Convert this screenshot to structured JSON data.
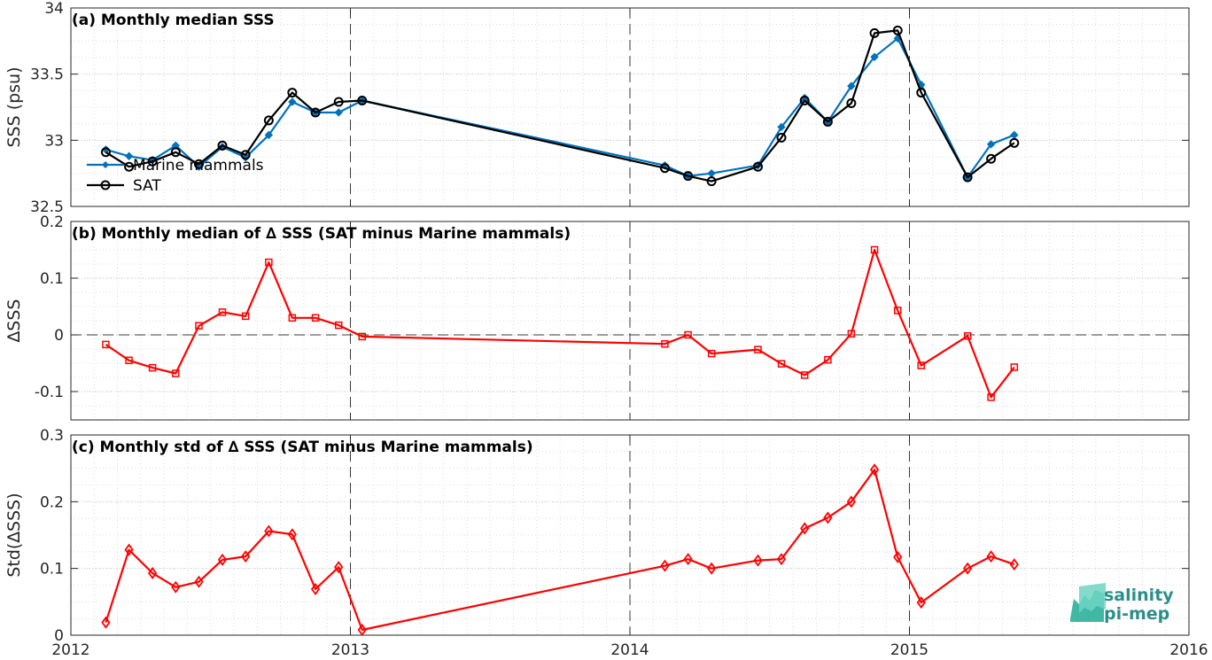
{
  "chart_data": [
    {
      "type": "line",
      "title": "(a) Monthly median SSS",
      "ylabel": "SSS (psu)",
      "xlim": [
        2012,
        2016
      ],
      "ylim": [
        32.5,
        34
      ],
      "yticks": [
        "32.5",
        "33",
        "33.5",
        "34"
      ],
      "grid": true,
      "legend_position": "lower-left",
      "series": [
        {
          "name": "Marine mammals",
          "color": "#0072bd",
          "marker": "diamond",
          "x": [
            2012.125,
            2012.208,
            2012.292,
            2012.375,
            2012.458,
            2012.542,
            2012.625,
            2012.708,
            2012.792,
            2012.875,
            2012.958,
            2013.042,
            2014.125,
            2014.208,
            2014.292,
            2014.458,
            2014.542,
            2014.625,
            2014.708,
            2014.792,
            2014.875,
            2014.958,
            2015.042,
            2015.208,
            2015.292,
            2015.375
          ],
          "values": [
            32.93,
            32.88,
            32.85,
            32.96,
            32.8,
            32.95,
            32.87,
            33.04,
            33.29,
            33.21,
            33.21,
            33.3,
            32.81,
            32.73,
            32.75,
            32.81,
            33.1,
            33.32,
            33.14,
            33.41,
            33.63,
            33.77,
            33.42,
            32.72,
            32.97,
            33.04
          ]
        },
        {
          "name": "SAT",
          "color": "#000000",
          "marker": "circle",
          "x": [
            2012.125,
            2012.208,
            2012.292,
            2012.375,
            2012.458,
            2012.542,
            2012.625,
            2012.708,
            2012.792,
            2012.875,
            2012.958,
            2013.042,
            2014.125,
            2014.208,
            2014.292,
            2014.458,
            2014.542,
            2014.625,
            2014.708,
            2014.792,
            2014.875,
            2014.958,
            2015.042,
            2015.208,
            2015.292,
            2015.375
          ],
          "values": [
            32.91,
            32.8,
            32.84,
            32.91,
            32.82,
            32.96,
            32.89,
            33.15,
            33.36,
            33.21,
            33.29,
            33.3,
            32.79,
            32.73,
            32.69,
            32.8,
            33.02,
            33.3,
            33.14,
            33.28,
            33.81,
            33.83,
            33.36,
            32.72,
            32.86,
            32.98
          ]
        }
      ]
    },
    {
      "type": "line",
      "title": "(b) Monthly median of ∆ SSS (SAT minus Marine mammals)",
      "ylabel": "∆SSS",
      "xlim": [
        2012,
        2016
      ],
      "ylim": [
        -0.15,
        0.2
      ],
      "yticks": [
        "-0.1",
        "0",
        "0.1",
        "0.2"
      ],
      "grid": true,
      "zero_line": true,
      "series": [
        {
          "color": "#ff0000",
          "marker": "square",
          "x": [
            2012.125,
            2012.208,
            2012.292,
            2012.375,
            2012.458,
            2012.542,
            2012.625,
            2012.708,
            2012.792,
            2012.875,
            2012.958,
            2013.042,
            2014.125,
            2014.208,
            2014.292,
            2014.458,
            2014.542,
            2014.625,
            2014.708,
            2014.792,
            2014.875,
            2014.958,
            2015.042,
            2015.208,
            2015.292,
            2015.375
          ],
          "values": [
            -0.017,
            -0.045,
            -0.058,
            -0.068,
            0.016,
            0.04,
            0.033,
            0.128,
            0.03,
            0.03,
            0.017,
            -0.003,
            -0.016,
            0.0,
            -0.033,
            -0.026,
            -0.051,
            -0.071,
            -0.044,
            0.002,
            0.15,
            0.043,
            -0.054,
            -0.002,
            -0.11,
            -0.057
          ]
        }
      ]
    },
    {
      "type": "line",
      "title": "(c) Monthly std of ∆ SSS (SAT minus Marine mammals)",
      "ylabel": "Std(∆SSS)",
      "xlim": [
        2012,
        2016
      ],
      "ylim": [
        0,
        0.3
      ],
      "yticks": [
        "0",
        "0.1",
        "0.2",
        "0.3"
      ],
      "xticks": [
        "2012",
        "2013",
        "2014",
        "2015",
        "2016"
      ],
      "grid": true,
      "series": [
        {
          "color": "#ff0000",
          "marker": "diamond-open",
          "x": [
            2012.125,
            2012.208,
            2012.292,
            2012.375,
            2012.458,
            2012.542,
            2012.625,
            2012.708,
            2012.792,
            2012.875,
            2012.958,
            2013.042,
            2014.125,
            2014.208,
            2014.292,
            2014.458,
            2014.542,
            2014.625,
            2014.708,
            2014.792,
            2014.875,
            2014.958,
            2015.042,
            2015.208,
            2015.292,
            2015.375
          ],
          "values": [
            0.019,
            0.128,
            0.093,
            0.072,
            0.08,
            0.113,
            0.118,
            0.156,
            0.151,
            0.069,
            0.102,
            0.008,
            0.104,
            0.114,
            0.1,
            0.112,
            0.114,
            0.16,
            0.176,
            0.2,
            0.248,
            0.117,
            0.049,
            0.1,
            0.118,
            0.106
          ]
        }
      ]
    }
  ],
  "logo": {
    "line1": "salinity",
    "line2": "pi-mep",
    "color": "#2a8f8a"
  }
}
